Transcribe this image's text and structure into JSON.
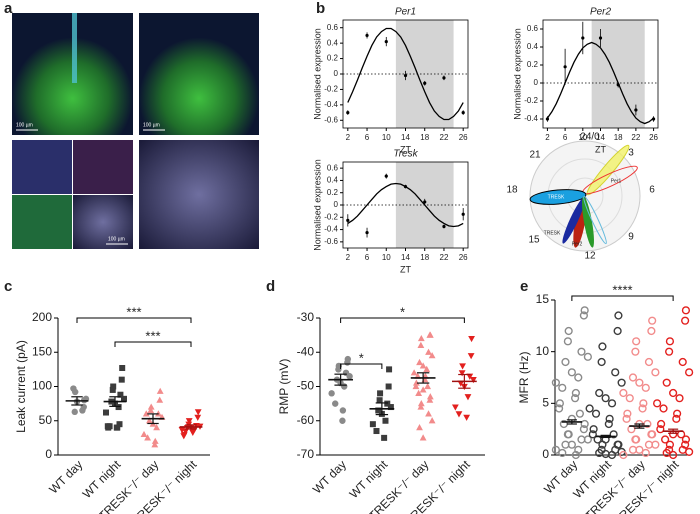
{
  "images": {
    "panel": "a",
    "scale_labels": [
      "100 µm",
      "100 µm",
      "100 µm"
    ]
  },
  "polar": {
    "labels": [
      "24/0",
      "3",
      "6",
      "9",
      "12",
      "15",
      "18",
      "21"
    ],
    "petal_labels": [
      "TRESK",
      "Per1",
      "TRESK",
      "Per2"
    ]
  },
  "chart_data": [
    {
      "type": "line",
      "panel": "b",
      "title": "Per1",
      "xlabel": "ZT",
      "ylabel": "Normalised expression",
      "xlim": [
        1,
        27
      ],
      "xticks": [
        2,
        6,
        10,
        14,
        18,
        22,
        26
      ],
      "ylim": [
        -0.7,
        0.7
      ],
      "yticks": [
        -0.6,
        -0.4,
        -0.2,
        0,
        0.2,
        0.4,
        0.6
      ],
      "shaded_x": [
        12,
        24
      ],
      "x": [
        2,
        3,
        4,
        5,
        6,
        7,
        8,
        9,
        10,
        11,
        12,
        13,
        14,
        15,
        16,
        17,
        18,
        19,
        20,
        21,
        22,
        23,
        24,
        25,
        26
      ],
      "series": [
        {
          "color": "#000000",
          "values": [
            -0.37,
            -0.23,
            -0.08,
            0.08,
            0.23,
            0.37,
            0.48,
            0.55,
            0.59,
            0.59,
            0.55,
            0.48,
            0.37,
            0.23,
            0.08,
            -0.08,
            -0.23,
            -0.37,
            -0.48,
            -0.55,
            -0.59,
            -0.59,
            -0.55,
            -0.48,
            -0.37
          ]
        }
      ],
      "points": {
        "x": [
          2,
          6,
          10,
          14,
          18,
          22,
          26
        ],
        "values": [
          -0.5,
          0.5,
          0.42,
          -0.02,
          -0.12,
          -0.05,
          -0.5
        ],
        "errors": [
          0.03,
          0.04,
          0.06,
          0.06,
          0.03,
          0.03,
          0.03
        ]
      }
    },
    {
      "type": "line",
      "title": "Per2",
      "xlabel": "ZT",
      "ylabel": "Normalised expression",
      "xlim": [
        1,
        27
      ],
      "xticks": [
        2,
        6,
        10,
        14,
        18,
        22,
        26
      ],
      "ylim": [
        -0.5,
        0.7
      ],
      "yticks": [
        -0.4,
        -0.2,
        0,
        0.2,
        0.4,
        0.6
      ],
      "shaded_x": [
        12,
        24
      ],
      "x": [
        2,
        3,
        4,
        5,
        6,
        7,
        8,
        9,
        10,
        11,
        12,
        13,
        14,
        15,
        16,
        17,
        18,
        19,
        20,
        21,
        22,
        23,
        24,
        25,
        26
      ],
      "series": [
        {
          "color": "#000000",
          "values": [
            -0.39,
            -0.32,
            -0.23,
            -0.12,
            0,
            0.12,
            0.23,
            0.32,
            0.39,
            0.43,
            0.45,
            0.43,
            0.39,
            0.32,
            0.23,
            0.12,
            0,
            -0.12,
            -0.23,
            -0.32,
            -0.39,
            -0.43,
            -0.45,
            -0.43,
            -0.39
          ]
        }
      ],
      "points": {
        "x": [
          2,
          6,
          10,
          14,
          18,
          22,
          26
        ],
        "values": [
          -0.4,
          0.18,
          0.5,
          0.5,
          -0.02,
          -0.3,
          -0.4
        ],
        "errors": [
          0.03,
          0.2,
          0.18,
          0.1,
          0.03,
          0.06,
          0.03
        ]
      }
    },
    {
      "type": "line",
      "title": "Tresk",
      "xlabel": "ZT",
      "ylabel": "Normalised expression",
      "xlim": [
        1,
        27
      ],
      "xticks": [
        2,
        6,
        10,
        14,
        18,
        22,
        26
      ],
      "ylim": [
        -0.7,
        0.7
      ],
      "yticks": [
        -0.6,
        -0.4,
        -0.2,
        0,
        0.2,
        0.4,
        0.6
      ],
      "shaded_x": [
        12,
        24
      ],
      "x": [
        2,
        3,
        4,
        5,
        6,
        7,
        8,
        9,
        10,
        11,
        12,
        13,
        14,
        15,
        16,
        17,
        18,
        19,
        20,
        21,
        22,
        23,
        24,
        25,
        26
      ],
      "series": [
        {
          "color": "#000000",
          "values": [
            -0.3,
            -0.25,
            -0.18,
            -0.09,
            0,
            0.09,
            0.18,
            0.25,
            0.3,
            0.34,
            0.35,
            0.34,
            0.3,
            0.25,
            0.18,
            0.09,
            0,
            -0.09,
            -0.18,
            -0.25,
            -0.3,
            -0.34,
            -0.35,
            -0.34,
            -0.3
          ]
        }
      ],
      "points": {
        "x": [
          2,
          6,
          10,
          14,
          18,
          22,
          26
        ],
        "values": [
          -0.25,
          -0.45,
          0.47,
          0.3,
          0.05,
          -0.35,
          -0.15
        ],
        "errors": [
          0.1,
          0.08,
          0.04,
          0.03,
          0.05,
          0.03,
          0.1
        ]
      }
    },
    {
      "type": "dot",
      "panel": "c",
      "ylabel": "Leak current (pA)",
      "ylim": [
        0,
        200
      ],
      "yticks": [
        0,
        50,
        100,
        150,
        200
      ],
      "categories": [
        "WT day",
        "WT night",
        "TRESK⁻/⁻ day",
        "TRESK⁻/⁻ night"
      ],
      "groups": [
        {
          "color": "#8a8a8a",
          "marker": "circle",
          "mean": 79,
          "sem": 6,
          "values": [
            80,
            70,
            92,
            63,
            65,
            82,
            97,
            78
          ]
        },
        {
          "color": "#3c3c3c",
          "marker": "square",
          "mean": 78,
          "sem": 7,
          "values": [
            127,
            110,
            100,
            95,
            88,
            82,
            78,
            75,
            70,
            62,
            42,
            40,
            40,
            40,
            42,
            45
          ]
        },
        {
          "color": "#f28b8b",
          "marker": "triangle",
          "mean": 53,
          "sem": 7,
          "values": [
            93,
            80,
            70,
            65,
            60,
            55,
            50,
            45,
            40,
            30,
            25,
            20,
            15,
            60
          ]
        },
        {
          "color": "#e3201e",
          "marker": "triangle-down",
          "mean": 41,
          "sem": 3,
          "values": [
            63,
            55,
            50,
            45,
            43,
            42,
            40,
            40,
            38,
            37,
            35,
            35,
            33,
            30,
            28
          ]
        }
      ],
      "annotations": [
        {
          "text": "***",
          "groups": [
            0,
            3
          ]
        },
        {
          "text": "***",
          "groups": [
            1,
            3
          ]
        }
      ]
    },
    {
      "type": "dot",
      "panel": "d",
      "ylabel": "RMP (mV)",
      "ylim": [
        -70,
        -30
      ],
      "yticks": [
        -70,
        -60,
        -50,
        -40,
        -30
      ],
      "categories": [
        "WT day",
        "WT night",
        "TRESK⁻/⁻ day",
        "TRESK⁻/⁻ night"
      ],
      "groups": [
        {
          "color": "#8a8a8a",
          "marker": "circle",
          "mean": -48,
          "sem": 1.6,
          "values": [
            -42,
            -43,
            -44,
            -45,
            -46,
            -47,
            -48,
            -49,
            -50,
            -52,
            -55,
            -57,
            -60
          ]
        },
        {
          "color": "#3c3c3c",
          "marker": "square",
          "mean": -56.5,
          "sem": 1.7,
          "values": [
            -45,
            -50,
            -52,
            -54,
            -55,
            -56,
            -57,
            -58,
            -60,
            -61,
            -63,
            -65
          ]
        },
        {
          "color": "#f28b8b",
          "marker": "triangle",
          "mean": -47.5,
          "sem": 1.5,
          "values": [
            -35,
            -35,
            -36,
            -38,
            -40,
            -41,
            -43,
            -44,
            -45,
            -46,
            -47,
            -47,
            -48,
            -49,
            -50,
            -50,
            -51,
            -52,
            -53,
            -54,
            -55,
            -56,
            -58,
            -60,
            -62,
            -65
          ]
        },
        {
          "color": "#e3201e",
          "marker": "triangle-down",
          "mean": -48.5,
          "sem": 2,
          "values": [
            -36,
            -41,
            -44,
            -46,
            -47,
            -48,
            -49,
            -50,
            -53,
            -56,
            -58,
            -59
          ]
        }
      ],
      "annotations": [
        {
          "text": "*",
          "groups": [
            0,
            3
          ]
        },
        {
          "text": "*",
          "groups": [
            0,
            1
          ]
        }
      ]
    },
    {
      "type": "dot",
      "panel": "e",
      "ylabel": "MFR (Hz)",
      "ylim": [
        0,
        15
      ],
      "yticks": [
        0,
        5,
        10,
        15
      ],
      "categories": [
        "WT day",
        "WT night",
        "TRESK⁻/⁻ day",
        "TRESK⁻/⁻ night"
      ],
      "groups": [
        {
          "color": "#8a8a8a",
          "marker": "circle-open",
          "mean": 3.2,
          "sem": 0.2,
          "values": [
            14,
            13.5,
            12,
            11,
            10,
            9.5,
            9,
            8,
            7.5,
            7,
            6.5,
            6,
            5.5,
            5,
            4.5,
            4,
            3.5,
            3,
            3,
            2.5,
            2,
            2,
            1.5,
            1.5,
            1,
            1,
            0.5,
            0.5,
            0.2,
            0
          ]
        },
        {
          "color": "#3c3c3c",
          "marker": "circle-open",
          "mean": 1.8,
          "sem": 0.1,
          "values": [
            13.5,
            12,
            10.5,
            9,
            8,
            7,
            6,
            5.5,
            5,
            4.5,
            4,
            3.5,
            3,
            2.5,
            2,
            2,
            1.5,
            1.5,
            1,
            1,
            1,
            0.5,
            0.5,
            0.3,
            0.2,
            0.1,
            0
          ]
        },
        {
          "color": "#f28b8b",
          "marker": "circle-open",
          "mean": 2.8,
          "sem": 0.2,
          "values": [
            13,
            12,
            11,
            10,
            9,
            8,
            7.5,
            7,
            6.5,
            6,
            5.5,
            5,
            4.5,
            4,
            3.5,
            3,
            3,
            2.5,
            2,
            2,
            1.5,
            1.5,
            1,
            1,
            0.5,
            0.5,
            0.2,
            0
          ]
        },
        {
          "color": "#e3201e",
          "marker": "circle-open",
          "mean": 2.3,
          "sem": 0.2,
          "values": [
            14,
            13,
            11,
            10,
            9,
            8,
            7,
            6,
            5.5,
            5,
            4.5,
            4,
            3.5,
            3,
            2.5,
            2,
            2,
            1.5,
            1.5,
            1,
            1,
            0.5,
            0.5,
            0.3,
            0.2,
            0
          ]
        }
      ],
      "annotations": [
        {
          "text": "****",
          "groups": [
            0,
            3
          ]
        }
      ]
    }
  ]
}
